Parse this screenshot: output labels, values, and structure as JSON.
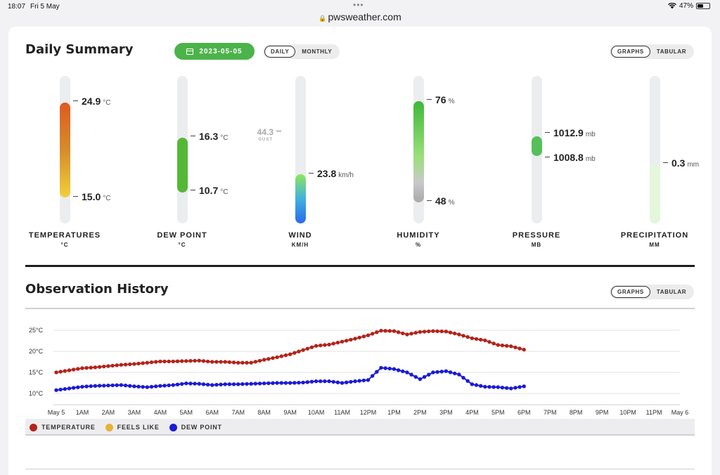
{
  "status": {
    "time": "18:07",
    "date": "Fri 5 May",
    "url": "pwsweather.com",
    "battery": "47%",
    "battery_level": 0.47
  },
  "daily": {
    "title": "Daily Summary",
    "date": "2023-05-05",
    "period_options": [
      "DAILY",
      "MONTHLY"
    ],
    "period_selected": "DAILY",
    "view_options": [
      "GRAPHS",
      "TABULAR"
    ],
    "view_selected": "GRAPHS"
  },
  "gauges": {
    "temperature": {
      "label": "TEMPERATURES",
      "unit": "°C",
      "high": "24.9",
      "low": "15.0",
      "unit_short": "°C"
    },
    "dewpoint": {
      "label": "DEW POINT",
      "unit": "°C",
      "high": "16.3",
      "low": "10.7",
      "unit_short": "°C"
    },
    "wind": {
      "label": "WIND",
      "unit": "KM/H",
      "value": "23.8",
      "unit_short": "km/h",
      "gust": "44.3",
      "gust_label": "GUST"
    },
    "humidity": {
      "label": "HUMIDITY",
      "unit": "%",
      "high": "76",
      "low": "48",
      "unit_short": "%"
    },
    "pressure": {
      "label": "PRESSURE",
      "unit": "MB",
      "high": "1012.9",
      "low": "1008.8",
      "unit_short": "mb"
    },
    "precipitation": {
      "label": "PRECIPITATION",
      "unit": "MM",
      "value": "0.3",
      "unit_short": "mm"
    }
  },
  "history": {
    "title": "Observation History",
    "view_options": [
      "GRAPHS",
      "TABULAR"
    ],
    "view_selected": "GRAPHS",
    "legend": [
      {
        "name": "TEMPERATURE",
        "color": "#b3241b"
      },
      {
        "name": "FEELS LIKE",
        "color": "#e8b23a"
      },
      {
        "name": "DEW POINT",
        "color": "#1b1bd6"
      }
    ]
  },
  "chart_data": {
    "type": "line",
    "x_ticks": [
      "May 5",
      "1AM",
      "2AM",
      "3AM",
      "4AM",
      "5AM",
      "6AM",
      "7AM",
      "8AM",
      "9AM",
      "10AM",
      "11AM",
      "12PM",
      "1PM",
      "2PM",
      "3PM",
      "4PM",
      "5PM",
      "6PM",
      "7PM",
      "8PM",
      "9PM",
      "10PM",
      "11PM",
      "May 6"
    ],
    "y_ticks": [
      "25°C",
      "20°C",
      "15°C",
      "10°C"
    ],
    "y_tick_values": [
      25,
      20,
      15,
      10
    ],
    "ylim": [
      9,
      26.5
    ],
    "x_unit": "hours since midnight",
    "series": [
      {
        "name": "TEMPERATURE",
        "color": "#b3241b",
        "x": [
          0,
          0.5,
          1,
          1.5,
          2,
          2.5,
          3,
          3.5,
          4,
          4.5,
          5,
          5.5,
          6,
          6.5,
          7,
          7.5,
          8,
          8.5,
          9,
          9.5,
          10,
          10.5,
          11,
          11.5,
          12,
          12.5,
          13,
          13.5,
          14,
          14.5,
          15,
          15.5,
          16,
          16.5,
          17,
          17.5,
          18
        ],
        "values": [
          15.0,
          15.5,
          16.0,
          16.2,
          16.5,
          16.8,
          17.0,
          17.3,
          17.6,
          17.6,
          17.7,
          17.8,
          17.5,
          17.5,
          17.3,
          17.3,
          18.0,
          18.6,
          19.3,
          20.3,
          21.3,
          21.6,
          22.3,
          23.0,
          23.8,
          24.9,
          24.8,
          24.0,
          24.6,
          24.8,
          24.7,
          24.0,
          23.1,
          22.6,
          21.5,
          21.2,
          20.4
        ]
      },
      {
        "name": "DEW POINT",
        "color": "#1b1bd6",
        "x": [
          0,
          0.5,
          1,
          1.5,
          2,
          2.5,
          3,
          3.5,
          4,
          4.5,
          5,
          5.5,
          6,
          6.5,
          7,
          7.5,
          8,
          8.5,
          9,
          9.5,
          10,
          10.5,
          11,
          11.5,
          12,
          12.5,
          13,
          13.5,
          14,
          14.5,
          15,
          15.5,
          16,
          16.5,
          17,
          17.5,
          18
        ],
        "values": [
          10.8,
          11.2,
          11.6,
          11.8,
          11.9,
          12.0,
          11.7,
          11.5,
          11.8,
          12.0,
          12.4,
          12.3,
          12.0,
          12.2,
          12.2,
          12.3,
          12.4,
          12.5,
          12.5,
          12.6,
          12.9,
          12.9,
          12.5,
          12.9,
          13.2,
          16.1,
          15.8,
          15.0,
          13.4,
          15.0,
          15.3,
          14.5,
          12.2,
          11.6,
          11.5,
          11.2,
          11.7
        ]
      }
    ]
  }
}
